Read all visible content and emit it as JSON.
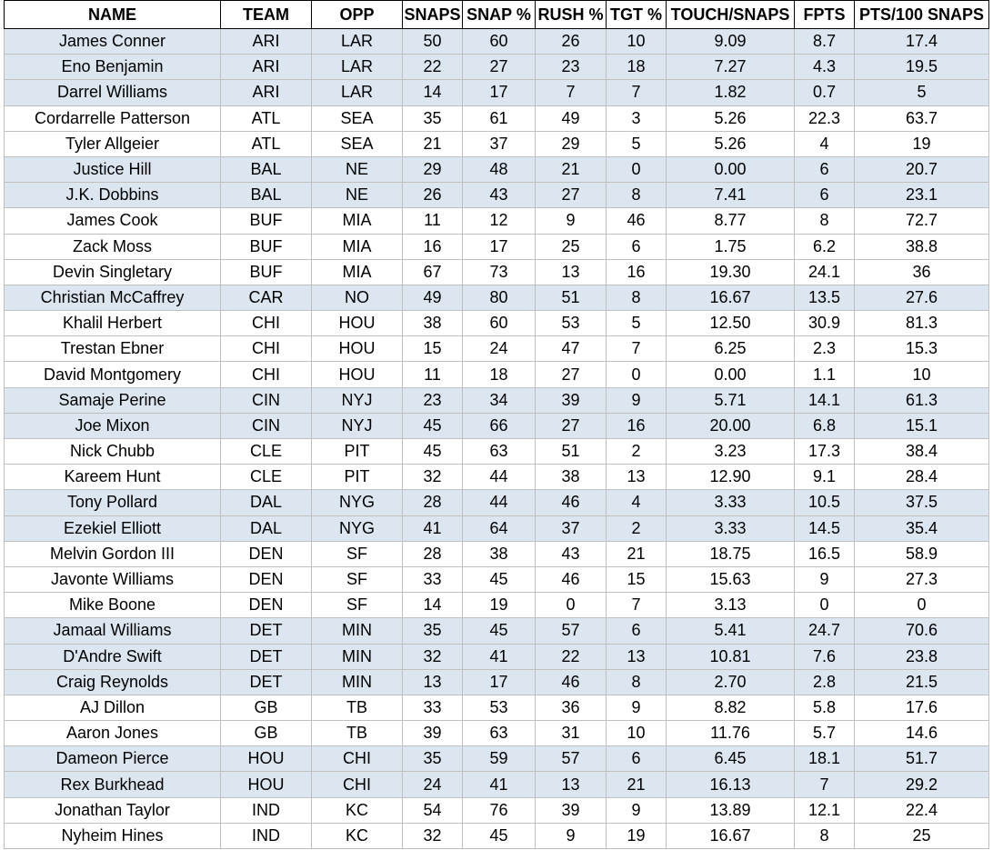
{
  "table": {
    "columns": [
      "NAME",
      "TEAM",
      "OPP",
      "SNAPS",
      "SNAP %",
      "RUSH %",
      "TGT %",
      "TOUCH/SNAPS",
      "FPTS",
      "PTS/100 SNAPS"
    ],
    "rows": [
      {
        "shade": true,
        "cells": [
          "James Conner",
          "ARI",
          "LAR",
          "50",
          "60",
          "26",
          "10",
          "9.09",
          "8.7",
          "17.4"
        ]
      },
      {
        "shade": true,
        "cells": [
          "Eno Benjamin",
          "ARI",
          "LAR",
          "22",
          "27",
          "23",
          "18",
          "7.27",
          "4.3",
          "19.5"
        ]
      },
      {
        "shade": true,
        "cells": [
          "Darrel Williams",
          "ARI",
          "LAR",
          "14",
          "17",
          "7",
          "7",
          "1.82",
          "0.7",
          "5"
        ]
      },
      {
        "shade": false,
        "cells": [
          "Cordarrelle Patterson",
          "ATL",
          "SEA",
          "35",
          "61",
          "49",
          "3",
          "5.26",
          "22.3",
          "63.7"
        ]
      },
      {
        "shade": false,
        "cells": [
          "Tyler Allgeier",
          "ATL",
          "SEA",
          "21",
          "37",
          "29",
          "5",
          "5.26",
          "4",
          "19"
        ]
      },
      {
        "shade": true,
        "cells": [
          "Justice Hill",
          "BAL",
          "NE",
          "29",
          "48",
          "21",
          "0",
          "0.00",
          "6",
          "20.7"
        ]
      },
      {
        "shade": true,
        "cells": [
          "J.K. Dobbins",
          "BAL",
          "NE",
          "26",
          "43",
          "27",
          "8",
          "7.41",
          "6",
          "23.1"
        ]
      },
      {
        "shade": false,
        "cells": [
          "James Cook",
          "BUF",
          "MIA",
          "11",
          "12",
          "9",
          "46",
          "8.77",
          "8",
          "72.7"
        ]
      },
      {
        "shade": false,
        "cells": [
          "Zack Moss",
          "BUF",
          "MIA",
          "16",
          "17",
          "25",
          "6",
          "1.75",
          "6.2",
          "38.8"
        ]
      },
      {
        "shade": false,
        "cells": [
          "Devin Singletary",
          "BUF",
          "MIA",
          "67",
          "73",
          "13",
          "16",
          "19.30",
          "24.1",
          "36"
        ]
      },
      {
        "shade": true,
        "cells": [
          "Christian McCaffrey",
          "CAR",
          "NO",
          "49",
          "80",
          "51",
          "8",
          "16.67",
          "13.5",
          "27.6"
        ]
      },
      {
        "shade": false,
        "cells": [
          "Khalil Herbert",
          "CHI",
          "HOU",
          "38",
          "60",
          "53",
          "5",
          "12.50",
          "30.9",
          "81.3"
        ]
      },
      {
        "shade": false,
        "cells": [
          "Trestan Ebner",
          "CHI",
          "HOU",
          "15",
          "24",
          "47",
          "7",
          "6.25",
          "2.3",
          "15.3"
        ]
      },
      {
        "shade": false,
        "cells": [
          "David Montgomery",
          "CHI",
          "HOU",
          "11",
          "18",
          "27",
          "0",
          "0.00",
          "1.1",
          "10"
        ]
      },
      {
        "shade": true,
        "cells": [
          "Samaje Perine",
          "CIN",
          "NYJ",
          "23",
          "34",
          "39",
          "9",
          "5.71",
          "14.1",
          "61.3"
        ]
      },
      {
        "shade": true,
        "cells": [
          "Joe Mixon",
          "CIN",
          "NYJ",
          "45",
          "66",
          "27",
          "16",
          "20.00",
          "6.8",
          "15.1"
        ]
      },
      {
        "shade": false,
        "cells": [
          "Nick Chubb",
          "CLE",
          "PIT",
          "45",
          "63",
          "51",
          "2",
          "3.23",
          "17.3",
          "38.4"
        ]
      },
      {
        "shade": false,
        "cells": [
          "Kareem Hunt",
          "CLE",
          "PIT",
          "32",
          "44",
          "38",
          "13",
          "12.90",
          "9.1",
          "28.4"
        ]
      },
      {
        "shade": true,
        "cells": [
          "Tony Pollard",
          "DAL",
          "NYG",
          "28",
          "44",
          "46",
          "4",
          "3.33",
          "10.5",
          "37.5"
        ]
      },
      {
        "shade": true,
        "cells": [
          "Ezekiel Elliott",
          "DAL",
          "NYG",
          "41",
          "64",
          "37",
          "2",
          "3.33",
          "14.5",
          "35.4"
        ]
      },
      {
        "shade": false,
        "cells": [
          "Melvin Gordon III",
          "DEN",
          "SF",
          "28",
          "38",
          "43",
          "21",
          "18.75",
          "16.5",
          "58.9"
        ]
      },
      {
        "shade": false,
        "cells": [
          "Javonte Williams",
          "DEN",
          "SF",
          "33",
          "45",
          "46",
          "15",
          "15.63",
          "9",
          "27.3"
        ]
      },
      {
        "shade": false,
        "cells": [
          "Mike Boone",
          "DEN",
          "SF",
          "14",
          "19",
          "0",
          "7",
          "3.13",
          "0",
          "0"
        ]
      },
      {
        "shade": true,
        "cells": [
          "Jamaal Williams",
          "DET",
          "MIN",
          "35",
          "45",
          "57",
          "6",
          "5.41",
          "24.7",
          "70.6"
        ]
      },
      {
        "shade": true,
        "cells": [
          "D'Andre Swift",
          "DET",
          "MIN",
          "32",
          "41",
          "22",
          "13",
          "10.81",
          "7.6",
          "23.8"
        ]
      },
      {
        "shade": true,
        "cells": [
          "Craig Reynolds",
          "DET",
          "MIN",
          "13",
          "17",
          "46",
          "8",
          "2.70",
          "2.8",
          "21.5"
        ]
      },
      {
        "shade": false,
        "cells": [
          "AJ Dillon",
          "GB",
          "TB",
          "33",
          "53",
          "36",
          "9",
          "8.82",
          "5.8",
          "17.6"
        ]
      },
      {
        "shade": false,
        "cells": [
          "Aaron Jones",
          "GB",
          "TB",
          "39",
          "63",
          "31",
          "10",
          "11.76",
          "5.7",
          "14.6"
        ]
      },
      {
        "shade": true,
        "cells": [
          "Dameon Pierce",
          "HOU",
          "CHI",
          "35",
          "59",
          "57",
          "6",
          "6.45",
          "18.1",
          "51.7"
        ]
      },
      {
        "shade": true,
        "cells": [
          "Rex Burkhead",
          "HOU",
          "CHI",
          "24",
          "41",
          "13",
          "21",
          "16.13",
          "7",
          "29.2"
        ]
      },
      {
        "shade": false,
        "cells": [
          "Jonathan Taylor",
          "IND",
          "KC",
          "54",
          "76",
          "39",
          "9",
          "13.89",
          "12.1",
          "22.4"
        ]
      },
      {
        "shade": false,
        "cells": [
          "Nyheim Hines",
          "IND",
          "KC",
          "32",
          "45",
          "9",
          "19",
          "16.67",
          "8",
          "25"
        ]
      }
    ]
  },
  "colors": {
    "shade": "#dce6f1",
    "plain": "#ffffff",
    "grid": "#bfbfbf",
    "header_border": "#000000"
  }
}
